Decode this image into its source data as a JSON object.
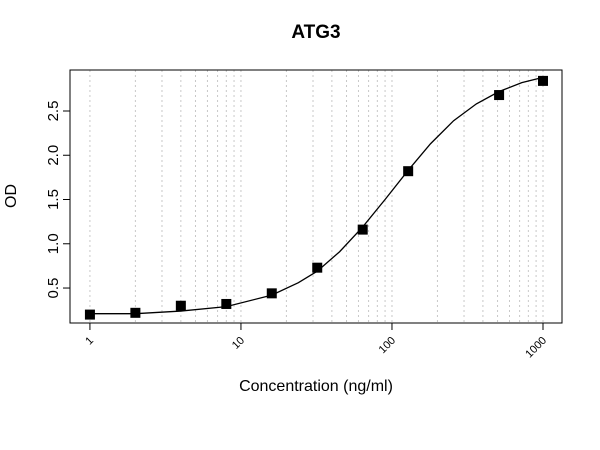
{
  "chart_data": {
    "type": "scatter",
    "title": "ATG3",
    "x_label": "Concentration (ng/ml)",
    "y_label": "OD",
    "x_log": true,
    "series": [
      {
        "type": "scatter",
        "color": "#000000",
        "x": [
          1,
          2,
          4,
          8,
          16,
          32,
          64,
          128,
          512,
          1000
        ],
        "values": [
          0.2,
          0.22,
          0.3,
          0.32,
          0.44,
          0.73,
          1.16,
          1.82,
          2.68,
          2.84
        ]
      },
      {
        "type": "line",
        "color": "#000000",
        "x": [
          1,
          2,
          4,
          8,
          16,
          24,
          32,
          45,
          64,
          90,
          128,
          180,
          256,
          362,
          512,
          724,
          1000
        ],
        "values": [
          0.21,
          0.21,
          0.24,
          0.29,
          0.42,
          0.56,
          0.69,
          0.91,
          1.19,
          1.5,
          1.83,
          2.13,
          2.39,
          2.58,
          2.72,
          2.82,
          2.88
        ]
      }
    ],
    "xlim": [
      0.738,
      1336
    ],
    "ylim": [
      0.105,
      2.963
    ],
    "xticks": [
      1,
      10,
      100,
      1000
    ],
    "yticks": [
      0.5,
      {
        "value": 1,
        "label": "1.0"
      },
      1.5,
      {
        "value": 2,
        "label": "2.0"
      },
      2.5
    ],
    "x_grid": [
      1,
      2,
      3,
      4,
      5,
      6,
      7,
      8,
      9,
      10,
      20,
      30,
      40,
      50,
      60,
      70,
      80,
      90,
      100,
      200,
      300,
      400,
      500,
      600,
      700,
      800,
      900,
      1000
    ]
  }
}
